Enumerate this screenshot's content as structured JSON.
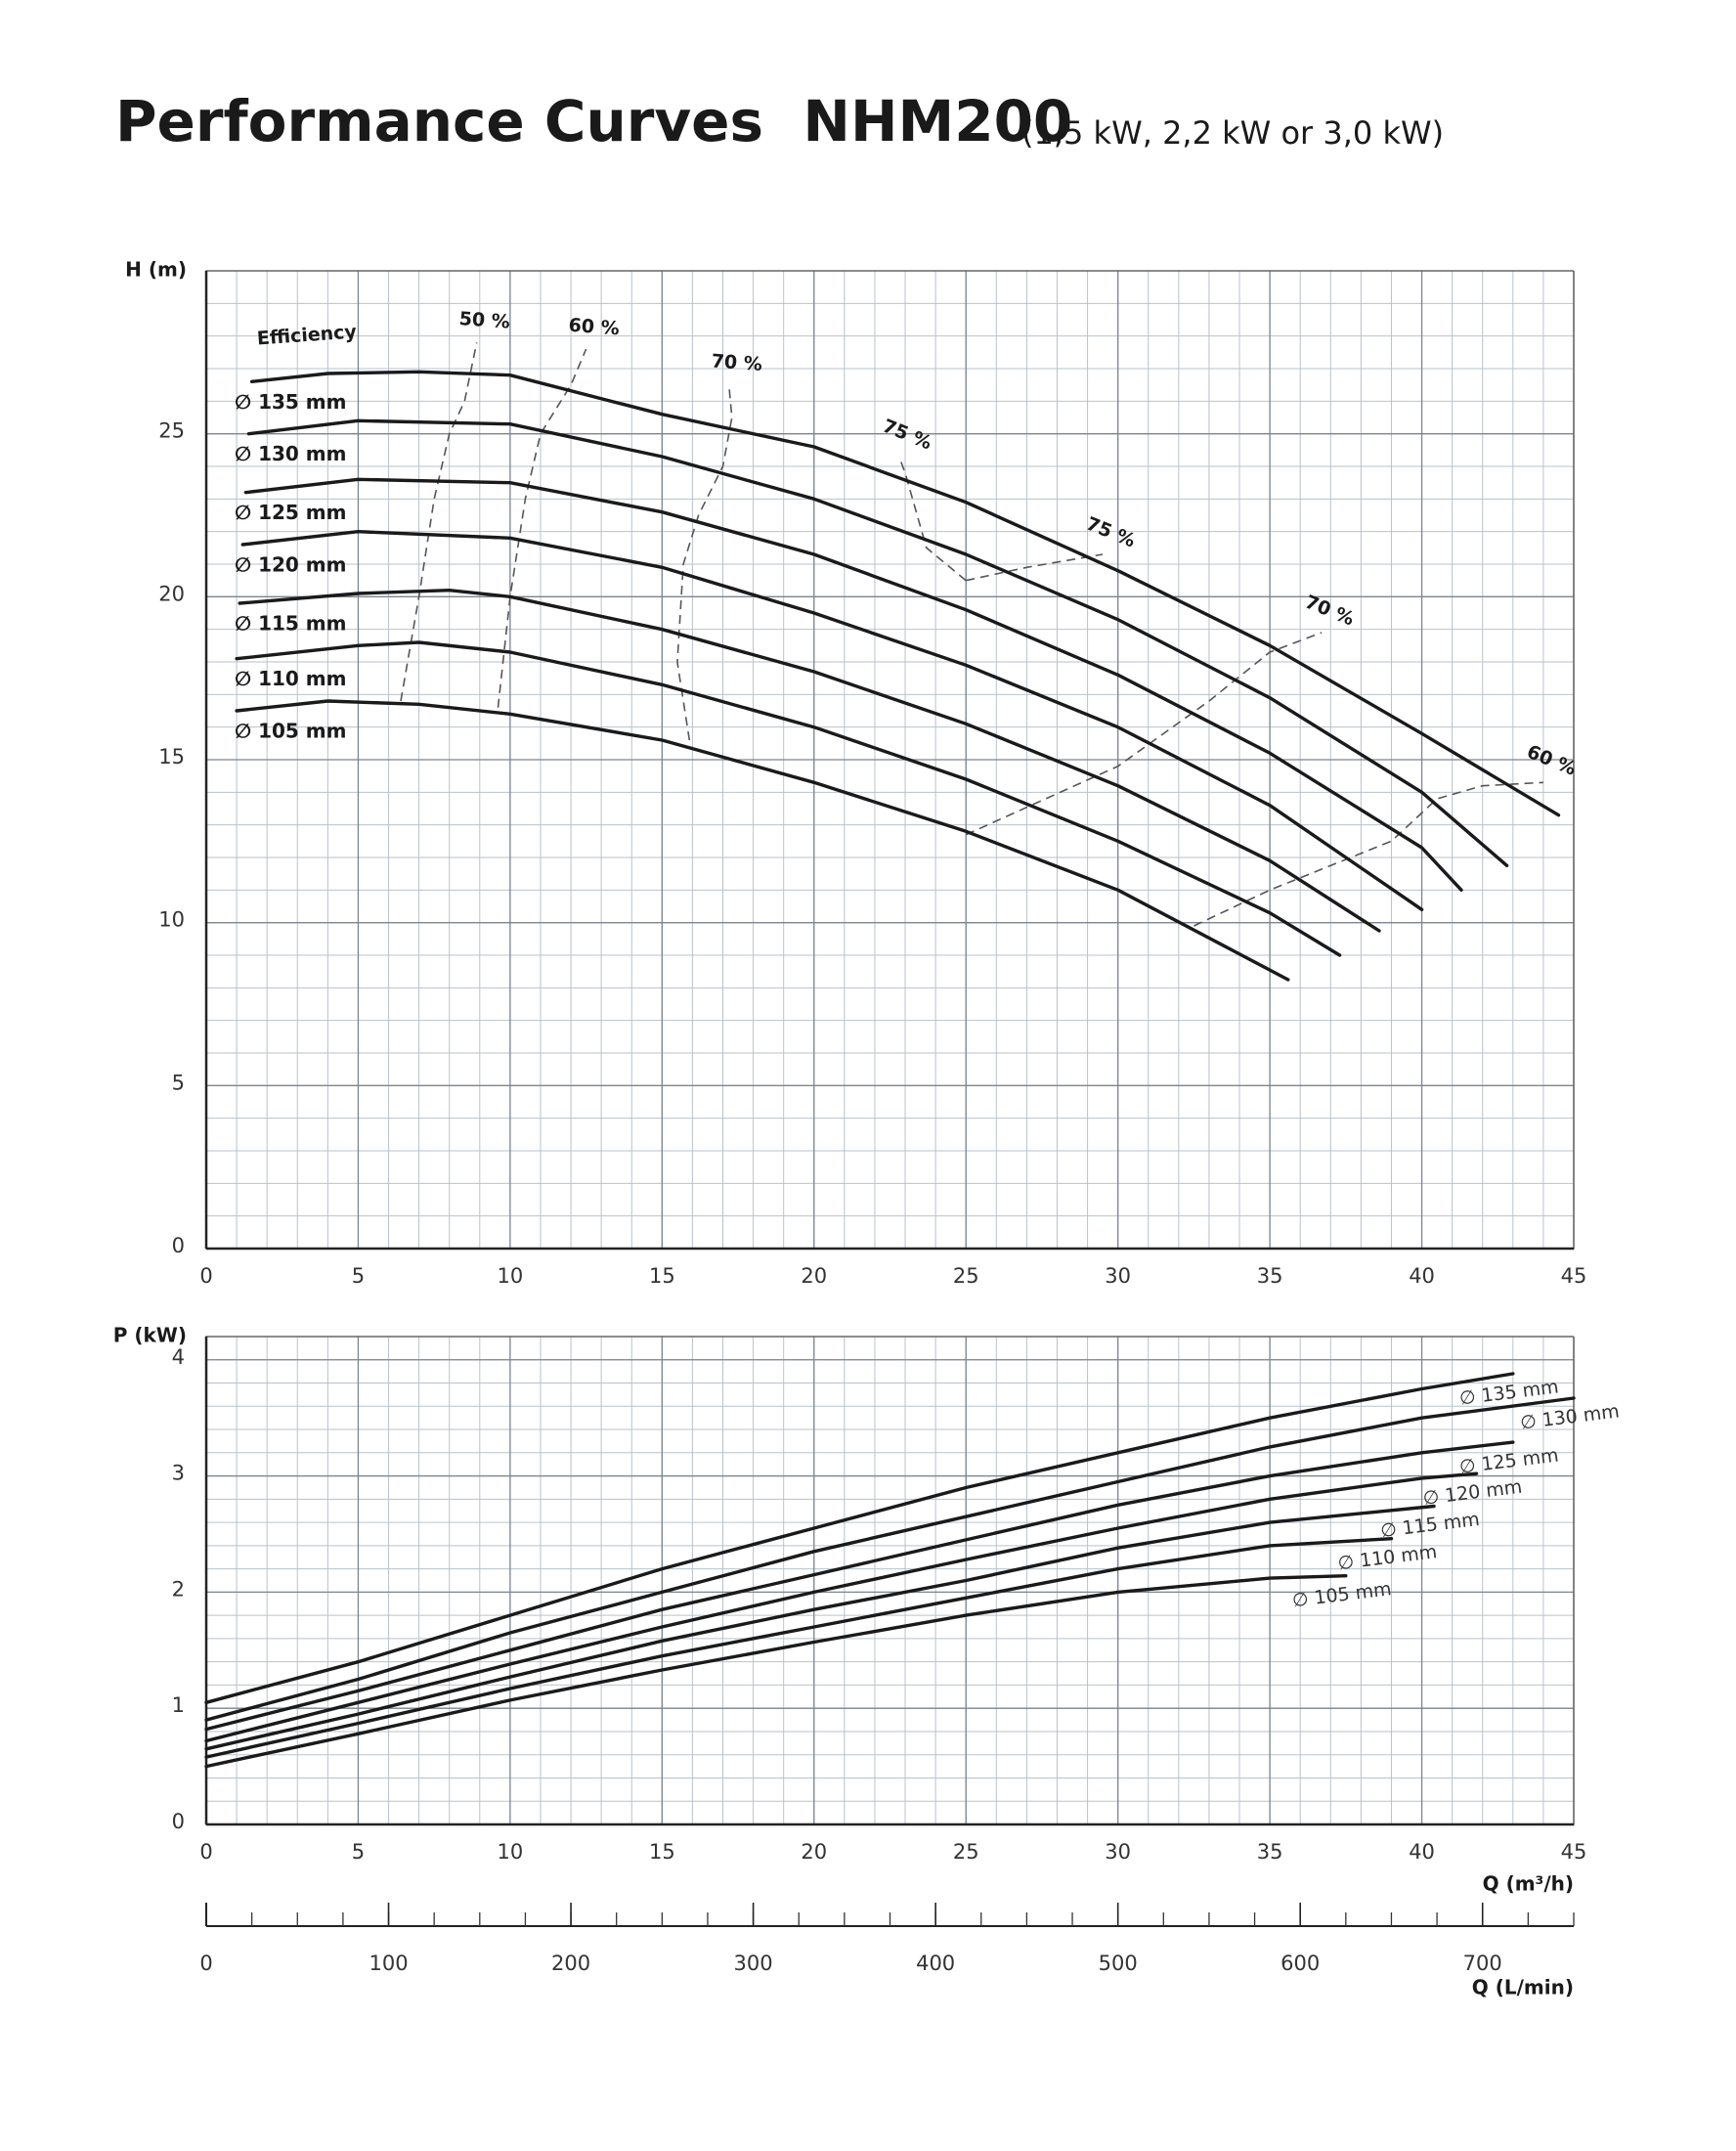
{
  "title": "Performance Curves  NHM200",
  "subtitle": "(1,5 kW, 2,2 kW or 3,0 kW)",
  "chart_data": [
    {
      "type": "line",
      "y_label": "H (m)",
      "efficiency_title": "Efficiency",
      "xlim": [
        0,
        45
      ],
      "xticks": [
        0,
        5,
        10,
        15,
        20,
        25,
        30,
        35,
        40,
        45
      ],
      "ylim": [
        0,
        30
      ],
      "yticks": [
        0,
        5,
        10,
        15,
        20,
        25
      ],
      "grid": true,
      "minor_step_x": 1,
      "minor_step_y": 1,
      "series": [
        {
          "name": "∅ 135 mm",
          "color": "#1a1a1a",
          "x": [
            1.5,
            4,
            7,
            10,
            15,
            20,
            25,
            30,
            35,
            40,
            44.5
          ],
          "values": [
            26.6,
            26.85,
            26.9,
            26.8,
            25.6,
            24.6,
            22.9,
            20.8,
            18.5,
            15.8,
            13.3
          ]
        },
        {
          "name": "∅ 130 mm",
          "color": "#1a1a1a",
          "x": [
            1.4,
            5,
            10,
            15,
            20,
            25,
            30,
            35,
            40,
            42.8
          ],
          "values": [
            25.0,
            25.4,
            25.3,
            24.3,
            23.0,
            21.3,
            19.3,
            16.9,
            14.0,
            11.75
          ]
        },
        {
          "name": "∅ 125 mm",
          "color": "#1a1a1a",
          "x": [
            1.3,
            5,
            10,
            15,
            20,
            25,
            30,
            35,
            40,
            41.3
          ],
          "values": [
            23.2,
            23.6,
            23.5,
            22.6,
            21.3,
            19.6,
            17.6,
            15.2,
            12.3,
            11.0
          ]
        },
        {
          "name": "∅ 120 mm",
          "color": "#1a1a1a",
          "x": [
            1.2,
            5,
            10,
            15,
            20,
            25,
            30,
            35,
            40
          ],
          "values": [
            21.6,
            22.0,
            21.8,
            20.9,
            19.5,
            17.9,
            16.0,
            13.6,
            10.4
          ]
        },
        {
          "name": "∅ 115 mm",
          "color": "#1a1a1a",
          "x": [
            1.1,
            5,
            8,
            10,
            15,
            20,
            25,
            30,
            35,
            38.6
          ],
          "values": [
            19.8,
            20.1,
            20.2,
            20.0,
            19.0,
            17.7,
            16.1,
            14.2,
            11.9,
            9.75
          ]
        },
        {
          "name": "∅ 110 mm",
          "color": "#1a1a1a",
          "x": [
            1,
            5,
            7,
            10,
            15,
            20,
            25,
            30,
            35,
            37.3
          ],
          "values": [
            18.1,
            18.5,
            18.6,
            18.3,
            17.3,
            16.0,
            14.4,
            12.5,
            10.3,
            9.0
          ]
        },
        {
          "name": "∅ 105 mm",
          "color": "#1a1a1a",
          "x": [
            1,
            4,
            7,
            10,
            15,
            20,
            25,
            30,
            35.6
          ],
          "values": [
            16.5,
            16.8,
            16.7,
            16.4,
            15.6,
            14.3,
            12.8,
            11.0,
            8.25
          ]
        }
      ],
      "efficiency_curves": [
        {
          "name": "50 %",
          "color": "#555555",
          "x": [
            6.4,
            7,
            7.5,
            8,
            8.5,
            8.9
          ],
          "values": [
            16.8,
            20,
            23,
            25,
            26,
            27.8
          ]
        },
        {
          "name": "60 %",
          "color": "#555555",
          "x": [
            9.6,
            10,
            10.5,
            11,
            12,
            12.5
          ],
          "values": [
            16.6,
            20,
            23,
            25,
            26.5,
            27.6
          ]
        },
        {
          "name": "70 %",
          "color": "#555555",
          "x": [
            15.9,
            15.5,
            15.7,
            16.2,
            17,
            17.3,
            17.2
          ],
          "values": [
            15.6,
            18,
            21,
            22.5,
            24,
            25.5,
            26.5
          ]
        },
        {
          "name": "75 %",
          "color": "#555555",
          "x": [
            25,
            23.7,
            23,
            22.8
          ],
          "values": [
            20.5,
            21.5,
            23.8,
            24.3
          ]
        },
        {
          "name": "75 %",
          "color": "#555555",
          "x": [
            25,
            27,
            29.5
          ],
          "values": [
            20.5,
            20.9,
            21.3
          ]
        },
        {
          "name": "70 %",
          "color": "#555555",
          "x": [
            25,
            30,
            33,
            35,
            36.7
          ],
          "values": [
            12.7,
            14.8,
            16.8,
            18.3,
            18.9
          ]
        },
        {
          "name": "60 %",
          "color": "#555555",
          "x": [
            32.5,
            35,
            39,
            40.5,
            42,
            44
          ],
          "values": [
            9.9,
            11.0,
            12.5,
            13.8,
            14.2,
            14.3
          ]
        }
      ]
    },
    {
      "type": "line",
      "y_label": "P (kW)",
      "x_label": "Q (m³/h)",
      "xlim": [
        0,
        45
      ],
      "xticks": [
        0,
        5,
        10,
        15,
        20,
        25,
        30,
        35,
        40,
        45
      ],
      "ylim": [
        0,
        4.2
      ],
      "yticks": [
        0,
        1,
        2,
        3,
        4
      ],
      "grid": true,
      "minor_step_x": 1,
      "minor_step_y": 0.2,
      "series": [
        {
          "name": "∅ 135 mm",
          "color": "#1a1a1a",
          "x": [
            0,
            5,
            10,
            15,
            20,
            25,
            30,
            35,
            40,
            43
          ],
          "values": [
            1.05,
            1.4,
            1.8,
            2.2,
            2.55,
            2.9,
            3.2,
            3.5,
            3.75,
            3.88
          ]
        },
        {
          "name": "∅ 130 mm",
          "color": "#1a1a1a",
          "x": [
            0,
            5,
            10,
            15,
            20,
            25,
            30,
            35,
            40,
            45
          ],
          "values": [
            0.9,
            1.25,
            1.65,
            2.0,
            2.35,
            2.65,
            2.95,
            3.25,
            3.5,
            3.67
          ]
        },
        {
          "name": "∅ 125 mm",
          "color": "#1a1a1a",
          "x": [
            0,
            5,
            10,
            15,
            20,
            25,
            30,
            35,
            40,
            43
          ],
          "values": [
            0.82,
            1.15,
            1.5,
            1.85,
            2.15,
            2.45,
            2.75,
            3.0,
            3.2,
            3.29
          ]
        },
        {
          "name": "∅ 120 mm",
          "color": "#1a1a1a",
          "x": [
            0,
            5,
            10,
            15,
            20,
            25,
            30,
            35,
            40,
            41.8
          ],
          "values": [
            0.72,
            1.05,
            1.38,
            1.7,
            2.0,
            2.28,
            2.55,
            2.8,
            2.98,
            3.02
          ]
        },
        {
          "name": "∅ 115 mm",
          "color": "#1a1a1a",
          "x": [
            0,
            5,
            10,
            15,
            20,
            25,
            30,
            35,
            40.4
          ],
          "values": [
            0.65,
            0.95,
            1.27,
            1.58,
            1.85,
            2.1,
            2.38,
            2.6,
            2.74
          ]
        },
        {
          "name": "∅ 110 mm",
          "color": "#1a1a1a",
          "x": [
            0,
            5,
            10,
            15,
            20,
            25,
            30,
            35,
            39
          ],
          "values": [
            0.58,
            0.87,
            1.17,
            1.45,
            1.7,
            1.95,
            2.2,
            2.4,
            2.46
          ]
        },
        {
          "name": "∅ 105 mm",
          "color": "#1a1a1a",
          "x": [
            0,
            5,
            10,
            15,
            20,
            25,
            30,
            35,
            37.5
          ],
          "values": [
            0.5,
            0.78,
            1.07,
            1.33,
            1.57,
            1.8,
            2.0,
            2.12,
            2.14
          ]
        }
      ],
      "x2_label": "Q (L/min)",
      "x2lim": [
        0,
        750
      ],
      "x2ticks": [
        0,
        100,
        200,
        300,
        400,
        500,
        600,
        700
      ],
      "x2_minor_step": 25
    }
  ]
}
